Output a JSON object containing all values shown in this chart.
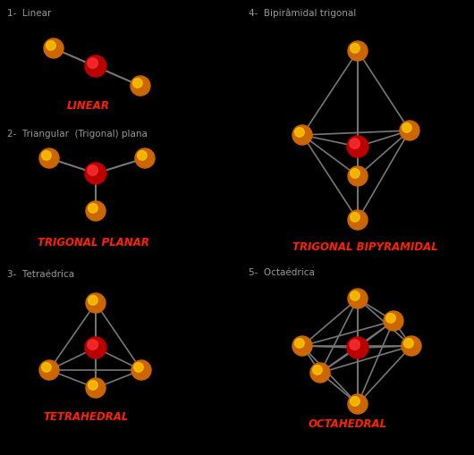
{
  "bg_color": "#000000",
  "label_color": "#999999",
  "title_color": "#ff2200",
  "center_color_outer": "#bb0000",
  "center_color_inner": "#ff3333",
  "outer_color_outer": "#cc6600",
  "outer_color_inner": "#ffcc00",
  "line_color": "#777777",
  "labels": {
    "linear_title": "1-  Linear",
    "linear_name": "LINEAR",
    "trigplanar_title": "2-  Triangular  (Trigonal) plana",
    "trigplanar_name": "TRIGONAL PLANAR",
    "tetrahedral_title": "3-  Tetraédrica",
    "tetrahedral_name": "TETRAHEDRAL",
    "bipyramidal_title": "4-  Bipirâmidal trigonal",
    "bipyramidal_name": "TRIGONAL BIPYRAMIDAL",
    "octahedral_title": "5-  Octaédrica",
    "octahedral_name": "OCTAHEDRAL"
  }
}
